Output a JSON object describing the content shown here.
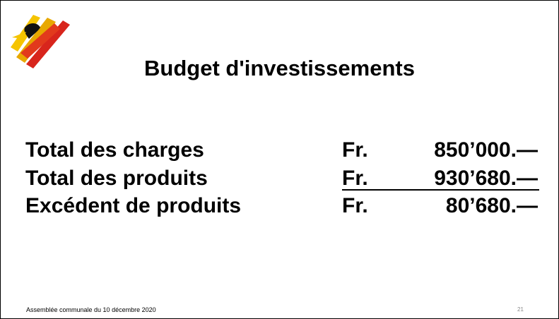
{
  "title": "Budget d'investissements",
  "rows": [
    {
      "label": "Total des charges",
      "currency": "Fr.",
      "amount": "850’000.—"
    },
    {
      "label": "Total des produits",
      "currency": "Fr.",
      "amount": "930’680.—"
    },
    {
      "label": "Excédent de produits",
      "currency": "Fr.",
      "amount": "80’680.—"
    }
  ],
  "footer": "Assemblée communale du 10 décembre 2020",
  "page_number": "21"
}
